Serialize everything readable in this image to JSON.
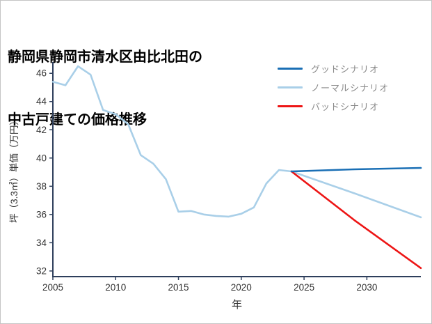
{
  "page": {
    "background": "#ffffff",
    "border_color": "#c4c4c4"
  },
  "title": {
    "line1": "静岡県静岡市清水区由比北田の",
    "line2": "中古戸建ての価格推移"
  },
  "chart_data": {
    "type": "line",
    "title": "静岡県静岡市清水区由比北田の中古戸建ての価格推移",
    "xlabel": "年",
    "ylabel": "坪（3.3㎡）単価（万円）",
    "x_ticks": [
      2005,
      2010,
      2015,
      2020,
      2025,
      2030
    ],
    "y_ticks": [
      32,
      34,
      36,
      38,
      40,
      42,
      44,
      46
    ],
    "xlim": [
      2005,
      2034.3
    ],
    "ylim": [
      31.6,
      46.8
    ],
    "grid": false,
    "axis_color": "#2e3f5c",
    "tick_label_color": "#333333",
    "legend_position": "top-right",
    "legend_text_color": "#8a8a8a",
    "legend": [
      {
        "label": "グッドシナリオ",
        "color": "#1a6fb5"
      },
      {
        "label": "ノーマルシナリオ",
        "color": "#a9cfe8"
      },
      {
        "label": "バッドシナリオ",
        "color": "#ed1515"
      }
    ],
    "series": [
      {
        "id": "historical",
        "color": "#a9cfe8",
        "x": [
          2005,
          2006,
          2007,
          2008,
          2009,
          2010,
          2011,
          2012,
          2013,
          2014,
          2015,
          2016,
          2017,
          2018,
          2019,
          2020,
          2021,
          2022,
          2023,
          2024
        ],
        "values": [
          45.4,
          45.15,
          46.5,
          45.9,
          43.4,
          43.1,
          42.4,
          40.2,
          39.6,
          38.5,
          36.2,
          36.25,
          36.0,
          35.9,
          35.85,
          36.05,
          36.5,
          38.2,
          39.15,
          39.05
        ]
      },
      {
        "id": "normal-scenario",
        "color": "#a9cfe8",
        "x": [
          2024,
          2029,
          2034.3
        ],
        "values": [
          39.05,
          37.5,
          35.8
        ]
      },
      {
        "id": "bad-scenario",
        "color": "#ed1515",
        "x": [
          2024,
          2029,
          2034.3
        ],
        "values": [
          39.05,
          35.6,
          32.2
        ]
      },
      {
        "id": "good-scenario",
        "color": "#1a6fb5",
        "x": [
          2024,
          2029,
          2034.3
        ],
        "values": [
          39.05,
          39.2,
          39.3
        ]
      }
    ]
  }
}
